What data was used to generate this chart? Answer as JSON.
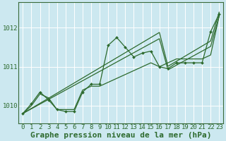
{
  "title": "Graphe pression niveau de la mer (hPa)",
  "bg_color": "#cce8f0",
  "grid_color": "#ffffff",
  "line_color": "#2d6a2d",
  "xlim": [
    -0.5,
    23.5
  ],
  "ylim": [
    1009.55,
    1012.65
  ],
  "yticks": [
    1010,
    1011,
    1012
  ],
  "xticks": [
    0,
    1,
    2,
    3,
    4,
    5,
    6,
    7,
    8,
    9,
    10,
    11,
    12,
    13,
    14,
    15,
    16,
    17,
    18,
    19,
    20,
    21,
    22,
    23
  ],
  "series_main": [
    1009.8,
    1010.05,
    1010.35,
    1010.15,
    1009.9,
    1009.85,
    1009.85,
    1010.35,
    1010.55,
    1010.55,
    1011.55,
    1011.75,
    1011.5,
    1011.25,
    1011.35,
    1011.4,
    1011.0,
    1010.95,
    1011.1,
    1011.1,
    1011.1,
    1011.1,
    1011.9,
    1012.35
  ],
  "series_linear1": [
    1009.8,
    1009.92,
    1010.04,
    1010.16,
    1010.28,
    1010.4,
    1010.52,
    1010.64,
    1010.76,
    1010.88,
    1011.0,
    1011.12,
    1011.24,
    1011.36,
    1011.48,
    1011.6,
    1011.72,
    1010.92,
    1011.04,
    1011.16,
    1011.28,
    1011.4,
    1011.52,
    1012.3
  ],
  "series_linear2": [
    1009.8,
    1009.93,
    1010.06,
    1010.19,
    1010.32,
    1010.45,
    1010.58,
    1010.71,
    1010.84,
    1010.97,
    1011.1,
    1011.23,
    1011.36,
    1011.49,
    1011.62,
    1011.75,
    1011.88,
    1011.01,
    1011.14,
    1011.27,
    1011.4,
    1011.53,
    1011.66,
    1012.4
  ],
  "series_smooth": [
    1009.8,
    1010.0,
    1010.3,
    1010.2,
    1009.9,
    1009.9,
    1009.9,
    1010.4,
    1010.5,
    1010.5,
    1010.6,
    1010.7,
    1010.8,
    1010.9,
    1011.0,
    1011.1,
    1011.0,
    1011.1,
    1011.2,
    1011.2,
    1011.2,
    1011.2,
    1011.3,
    1012.3
  ],
  "title_fontsize": 8,
  "tick_fontsize": 6.5
}
